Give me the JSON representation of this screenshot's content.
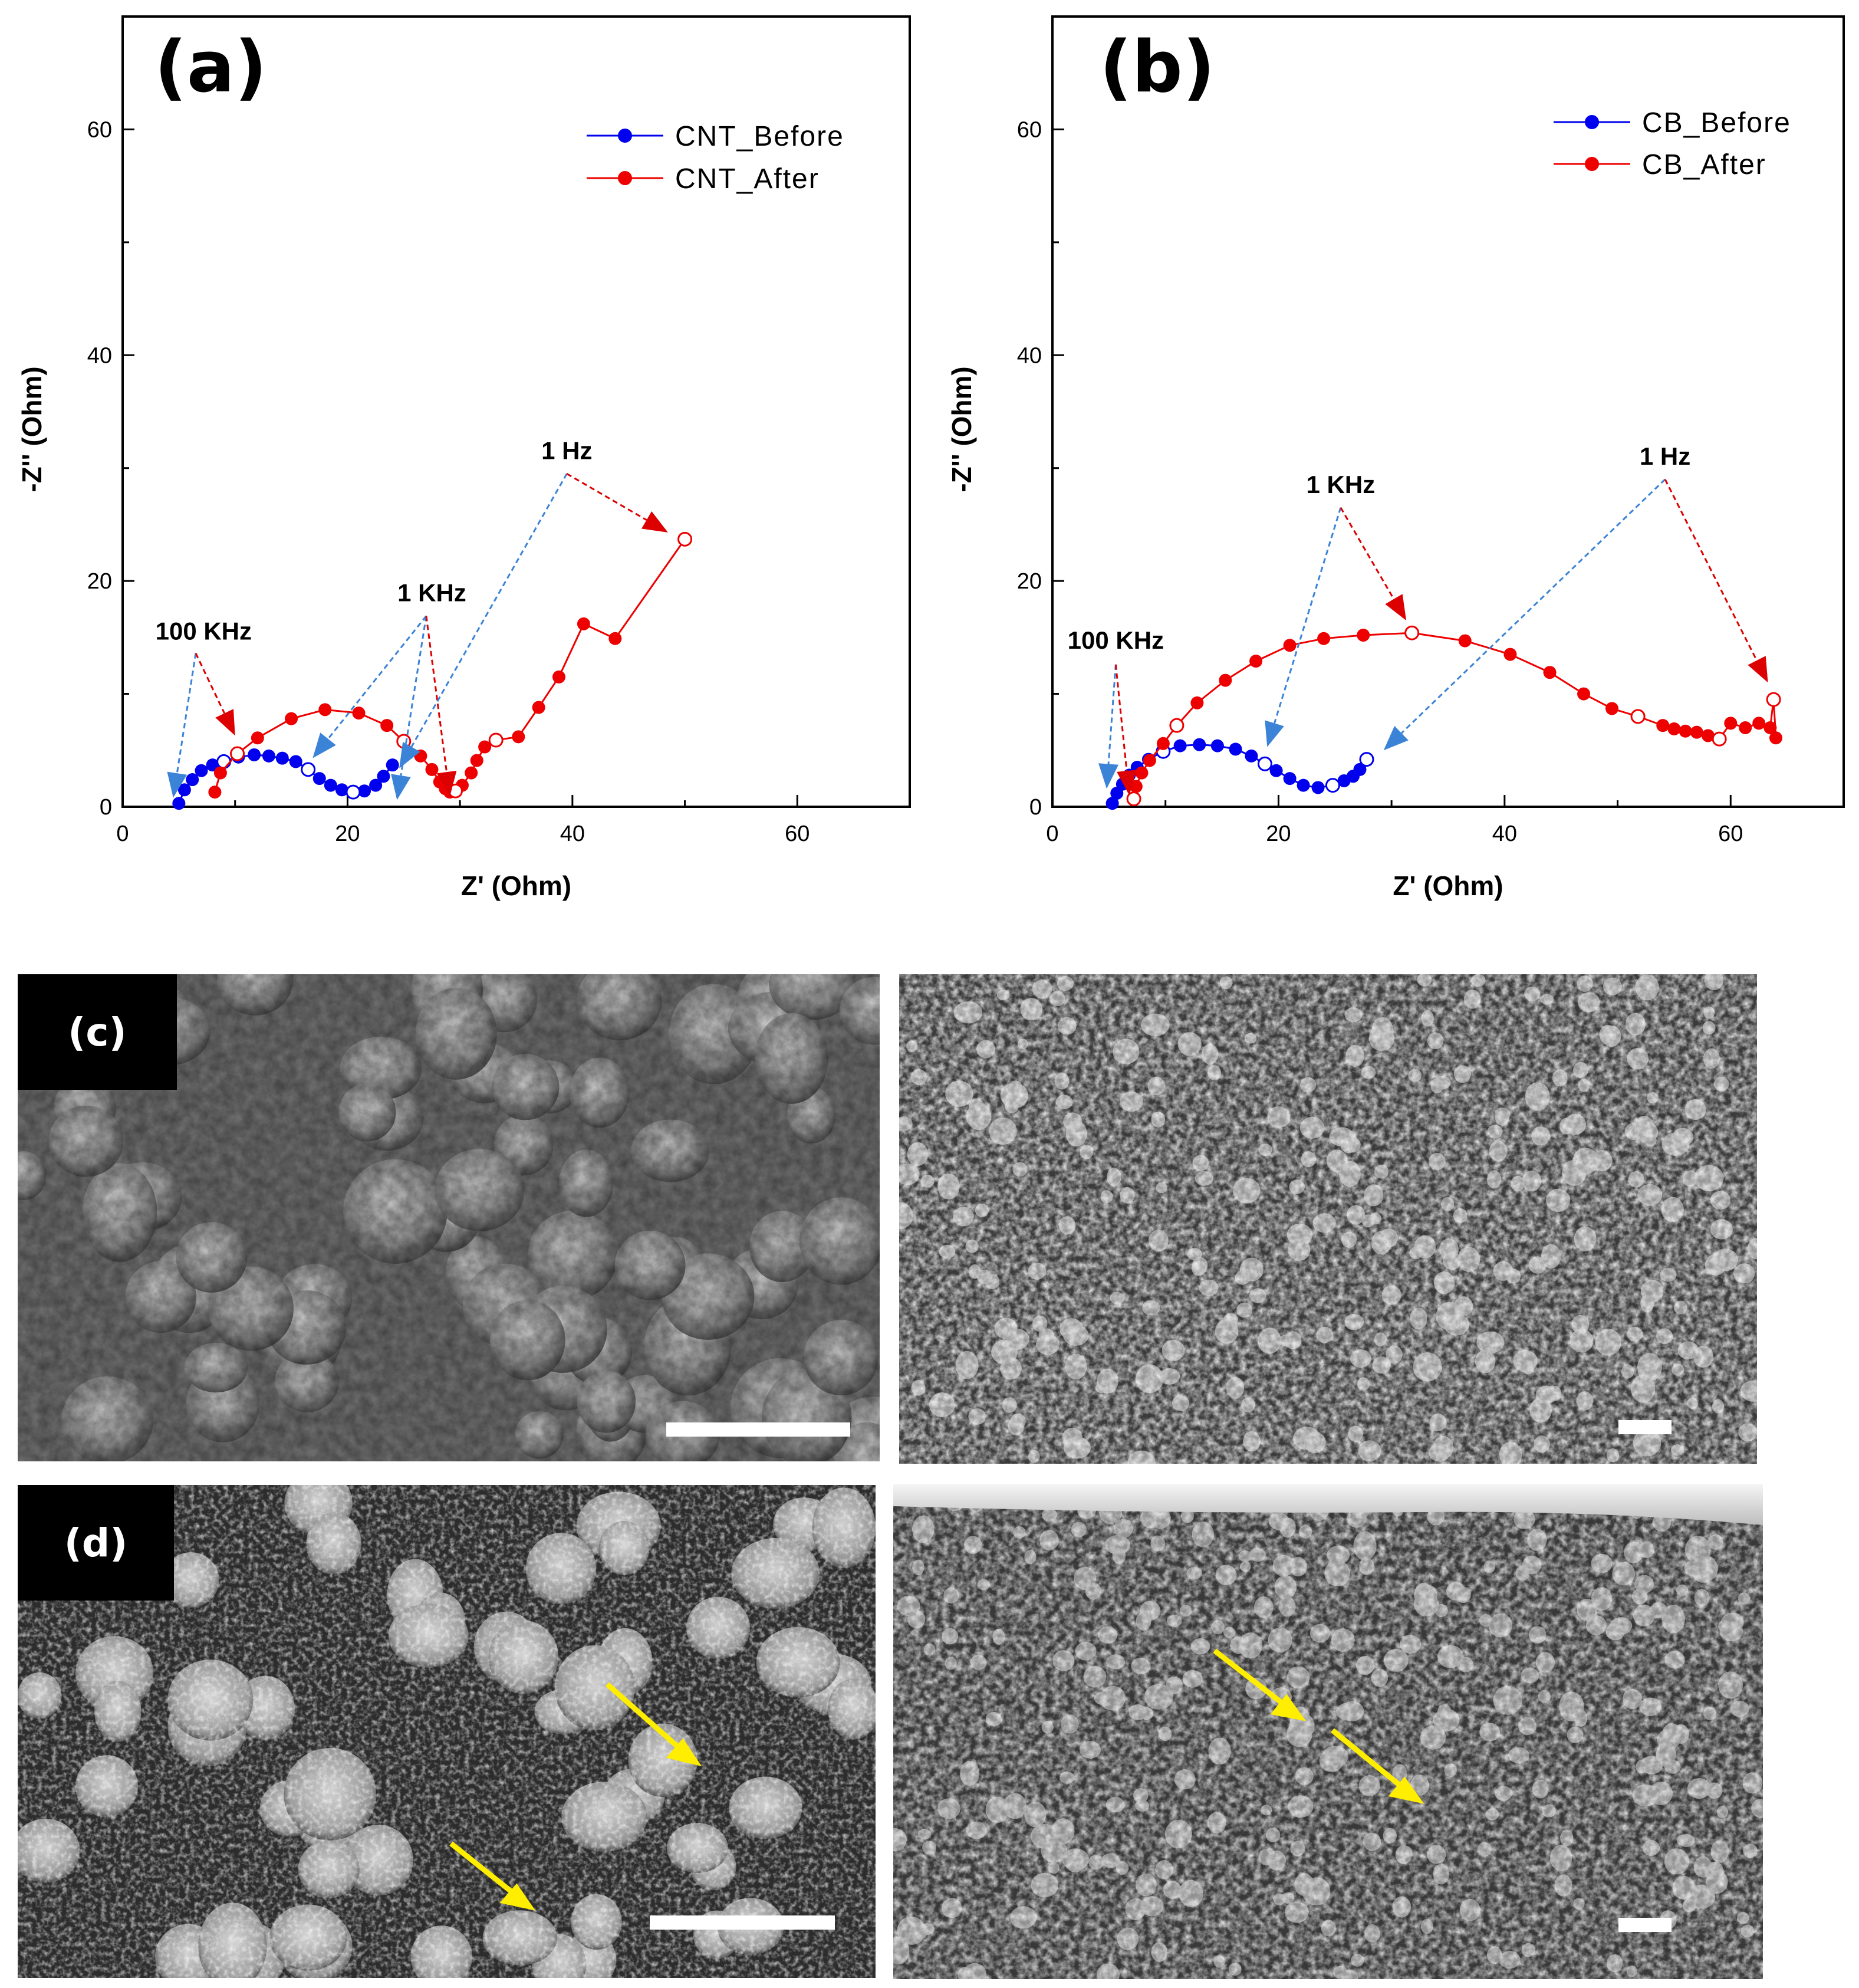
{
  "chart_data": [
    {
      "type": "scatter",
      "panel_label": "(a)",
      "xlabel": "Z' (Ohm)",
      "ylabel": "-Z'' (Ohm)",
      "xlim": [
        0,
        70
      ],
      "ylim": [
        0,
        70
      ],
      "xticks": [
        0,
        20,
        40,
        60
      ],
      "yticks": [
        0,
        20,
        40,
        60
      ],
      "grid": false,
      "legend_position": "top-right",
      "series": [
        {
          "name": "CNT_Before",
          "color": "#0000ee",
          "points": [
            [
              5.0,
              0.3
            ],
            [
              5.5,
              1.5
            ],
            [
              6.2,
              2.4
            ],
            [
              7.0,
              3.2
            ],
            [
              8.0,
              3.7
            ],
            [
              9.0,
              4.0
            ],
            [
              10.3,
              4.4
            ],
            [
              11.7,
              4.6
            ],
            [
              13.0,
              4.5
            ],
            [
              14.2,
              4.3
            ],
            [
              15.4,
              4.0
            ],
            [
              16.5,
              3.3
            ],
            [
              17.5,
              2.5
            ],
            [
              18.5,
              1.9
            ],
            [
              19.5,
              1.5
            ],
            [
              20.5,
              1.3
            ],
            [
              21.5,
              1.4
            ],
            [
              22.5,
              1.9
            ],
            [
              23.2,
              2.7
            ],
            [
              24.0,
              3.7
            ]
          ],
          "open_points": [
            [
              9.0,
              4.0
            ],
            [
              16.5,
              3.3
            ],
            [
              20.5,
              1.3
            ]
          ]
        },
        {
          "name": "CNT_After",
          "color": "#ee0000",
          "points": [
            [
              8.2,
              1.3
            ],
            [
              8.7,
              3.0
            ],
            [
              10.2,
              4.7
            ],
            [
              12.0,
              6.1
            ],
            [
              15.0,
              7.8
            ],
            [
              18.0,
              8.6
            ],
            [
              21.0,
              8.3
            ],
            [
              23.5,
              7.2
            ],
            [
              25.0,
              5.8
            ],
            [
              26.5,
              4.5
            ],
            [
              27.5,
              3.3
            ],
            [
              28.2,
              2.2
            ],
            [
              28.7,
              1.6
            ],
            [
              29.1,
              1.3
            ],
            [
              29.6,
              1.4
            ],
            [
              30.2,
              1.9
            ],
            [
              31.0,
              3.0
            ],
            [
              31.5,
              4.1
            ],
            [
              32.2,
              5.3
            ],
            [
              33.2,
              5.9
            ],
            [
              35.2,
              6.2
            ],
            [
              37.0,
              8.8
            ],
            [
              38.8,
              11.5
            ],
            [
              41.0,
              16.2
            ],
            [
              43.8,
              14.9
            ],
            [
              50.0,
              23.7
            ]
          ],
          "open_points": [
            [
              10.2,
              4.7
            ],
            [
              25.0,
              5.8
            ],
            [
              29.6,
              1.4
            ],
            [
              33.2,
              5.9
            ],
            [
              50.0,
              23.7
            ]
          ]
        }
      ],
      "annotations": [
        {
          "text": "100 KHz",
          "x": 7.2,
          "y": 14.8
        },
        {
          "text": "1 KHz",
          "x": 27.5,
          "y": 18.2
        },
        {
          "text": "1 Hz",
          "x": 39.5,
          "y": 30.8
        }
      ]
    },
    {
      "type": "scatter",
      "panel_label": "(b)",
      "xlabel": "Z' (Ohm)",
      "ylabel": "-Z'' (Ohm)",
      "xlim": [
        0,
        70
      ],
      "ylim": [
        0,
        70
      ],
      "xticks": [
        0,
        20,
        40,
        60
      ],
      "yticks": [
        0,
        20,
        40,
        60
      ],
      "grid": false,
      "legend_position": "top-right",
      "series": [
        {
          "name": "CB_Before",
          "color": "#0000ee",
          "points": [
            [
              5.3,
              0.3
            ],
            [
              5.7,
              1.2
            ],
            [
              6.2,
              2.0
            ],
            [
              6.8,
              2.8
            ],
            [
              7.5,
              3.5
            ],
            [
              8.5,
              4.2
            ],
            [
              9.8,
              4.9
            ],
            [
              11.3,
              5.4
            ],
            [
              13.0,
              5.5
            ],
            [
              14.6,
              5.4
            ],
            [
              16.2,
              5.1
            ],
            [
              17.6,
              4.5
            ],
            [
              18.8,
              3.8
            ],
            [
              19.8,
              3.2
            ],
            [
              21.0,
              2.5
            ],
            [
              22.2,
              1.9
            ],
            [
              23.5,
              1.7
            ],
            [
              24.8,
              1.9
            ],
            [
              25.8,
              2.3
            ],
            [
              26.6,
              2.7
            ],
            [
              27.2,
              3.3
            ],
            [
              27.8,
              4.2
            ]
          ],
          "open_points": [
            [
              9.8,
              4.9
            ],
            [
              18.8,
              3.8
            ],
            [
              24.8,
              1.9
            ],
            [
              27.8,
              4.2
            ]
          ]
        },
        {
          "name": "CB_After",
          "color": "#ee0000",
          "points": [
            [
              7.2,
              0.7
            ],
            [
              7.4,
              1.8
            ],
            [
              7.9,
              3.0
            ],
            [
              8.6,
              4.1
            ],
            [
              9.8,
              5.6
            ],
            [
              11.0,
              7.2
            ],
            [
              12.8,
              9.2
            ],
            [
              15.3,
              11.2
            ],
            [
              18.0,
              12.9
            ],
            [
              21.0,
              14.3
            ],
            [
              24.0,
              14.9
            ],
            [
              27.5,
              15.2
            ],
            [
              31.8,
              15.4
            ],
            [
              36.5,
              14.7
            ],
            [
              40.5,
              13.5
            ],
            [
              44.0,
              11.9
            ],
            [
              47.0,
              10.0
            ],
            [
              49.5,
              8.7
            ],
            [
              51.8,
              8.0
            ],
            [
              54.0,
              7.2
            ],
            [
              55.0,
              6.9
            ],
            [
              56.0,
              6.7
            ],
            [
              57.0,
              6.6
            ],
            [
              58.0,
              6.3
            ],
            [
              59.0,
              6.0
            ],
            [
              60.0,
              7.4
            ],
            [
              61.3,
              7.0
            ],
            [
              62.5,
              7.4
            ],
            [
              63.5,
              7.0
            ],
            [
              63.8,
              9.5
            ],
            [
              64.0,
              6.1
            ]
          ],
          "open_points": [
            [
              7.2,
              0.7
            ],
            [
              11.0,
              7.2
            ],
            [
              31.8,
              15.4
            ],
            [
              51.8,
              8.0
            ],
            [
              59.0,
              6.0
            ],
            [
              63.8,
              9.5
            ]
          ]
        }
      ],
      "annotations": [
        {
          "text": "100 KHz",
          "x": 5.6,
          "y": 14.0
        },
        {
          "text": "1 KHz",
          "x": 25.5,
          "y": 27.8
        },
        {
          "text": "1 Hz",
          "x": 54.2,
          "y": 30.3
        }
      ]
    }
  ],
  "sem_panels": [
    {
      "label": "(c)"
    },
    {
      "label": "(d)"
    }
  ],
  "colors": {
    "axis": "#000000",
    "before_series": "#0000ee",
    "after_series": "#ee0000",
    "before_pointer": "#3b83d6",
    "after_pointer": "#dd0000",
    "sem_arrow": "#ffee00",
    "scale_bar": "#ffffff"
  }
}
